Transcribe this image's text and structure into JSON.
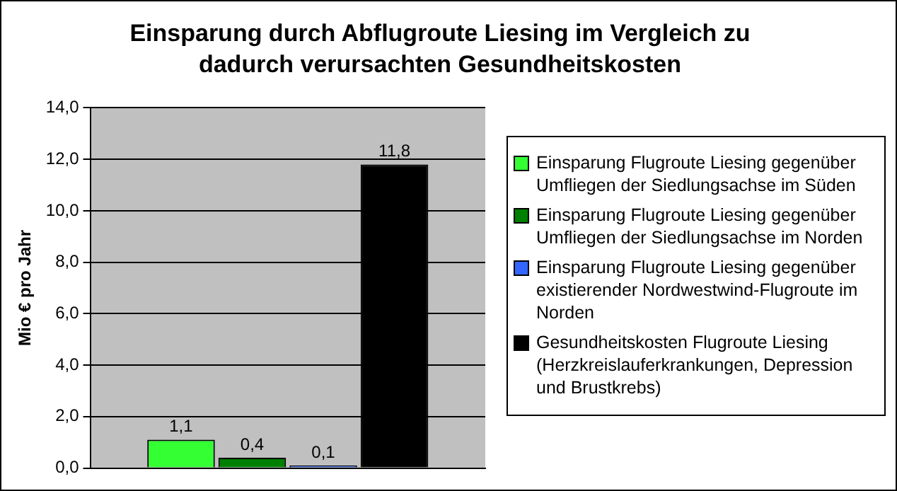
{
  "chart_data": {
    "type": "bar",
    "title": "Einsparung durch Abflugroute Liesing im Vergleich zu dadurch verursachten Gesundheitskosten",
    "ylabel": "Mio € pro Jahr",
    "categories": [
      null
    ],
    "series": [
      {
        "name": "Einsparung Flugroute Liesing gegenüber Umfliegen der Siedlungsachse im Süden",
        "color": "#33ff33",
        "values": [
          1.1
        ],
        "value_labels": [
          "1,1"
        ]
      },
      {
        "name": "Einsparung Flugroute Liesing gegenüber Umfliegen der Siedlungsachse im Norden",
        "color": "#008000",
        "values": [
          0.4
        ],
        "value_labels": [
          "0,4"
        ]
      },
      {
        "name": "Einsparung Flugroute Liesing gegenüber existierender Nordwestwind-Flugroute im Norden",
        "color": "#3366ff",
        "values": [
          0.1
        ],
        "value_labels": [
          "0,1"
        ]
      },
      {
        "name": "Gesundheitskosten Flugroute Liesing (Herzkreislauferkrankungen, Depression und Brustkrebs)",
        "color": "#000000",
        "values": [
          11.8
        ],
        "value_labels": [
          "11,8"
        ]
      }
    ],
    "ylim": [
      0,
      14
    ],
    "yticks": [
      {
        "value": 0,
        "label": "0,0"
      },
      {
        "value": 2,
        "label": "2,0"
      },
      {
        "value": 4,
        "label": "4,0"
      },
      {
        "value": 6,
        "label": "6,0"
      },
      {
        "value": 8,
        "label": "8,0"
      },
      {
        "value": 10,
        "label": "10,0"
      },
      {
        "value": 12,
        "label": "12,0"
      },
      {
        "value": 14,
        "label": "14,0"
      }
    ],
    "grid": "y",
    "legend": "right"
  }
}
